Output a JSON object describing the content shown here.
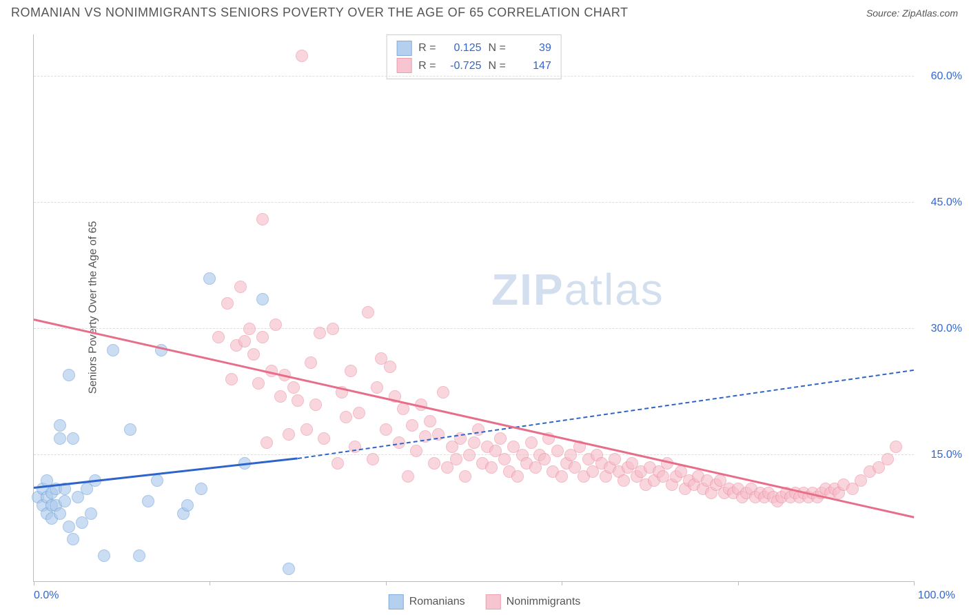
{
  "title": "ROMANIAN VS NONIMMIGRANTS SENIORS POVERTY OVER THE AGE OF 65 CORRELATION CHART",
  "source": "Source: ZipAtlas.com",
  "ylabel": "Seniors Poverty Over the Age of 65",
  "watermark_a": "ZIP",
  "watermark_b": "atlas",
  "chart": {
    "type": "scatter",
    "xlim": [
      0,
      100
    ],
    "ylim": [
      0,
      65
    ],
    "ytick_values": [
      15,
      30,
      45,
      60
    ],
    "ytick_labels": [
      "15.0%",
      "30.0%",
      "45.0%",
      "60.0%"
    ],
    "xtick_values": [
      0,
      20,
      40,
      60,
      80,
      100
    ],
    "xtick_end_labels": {
      "left": "0.0%",
      "right": "100.0%"
    },
    "background_color": "#ffffff",
    "grid_color": "#dddddd",
    "axis_color": "#bbbbbb",
    "label_color": "#555555",
    "tick_label_color": "#3366cc",
    "marker_radius": 9,
    "marker_stroke_width": 1.5,
    "trend_line_width": 3,
    "series": [
      {
        "name": "Romanians",
        "fill_color": "#a9c8ec",
        "stroke_color": "#6b9fd8",
        "fill_opacity": 0.6,
        "R": "0.125",
        "N": "39",
        "trend": {
          "x1": 0,
          "y1": 11,
          "x2": 30,
          "y2": 14.5,
          "color": "#2e64c9",
          "extend_to_x": 100,
          "extend_y": 25,
          "extend_dashed": true
        },
        "points": [
          [
            0.5,
            10
          ],
          [
            1,
            11
          ],
          [
            1,
            9
          ],
          [
            1.5,
            12
          ],
          [
            1.5,
            10
          ],
          [
            1.5,
            8
          ],
          [
            2,
            10.5
          ],
          [
            2,
            9
          ],
          [
            2,
            7.5
          ],
          [
            2.5,
            11
          ],
          [
            2.5,
            9
          ],
          [
            3,
            17
          ],
          [
            3,
            18.5
          ],
          [
            3,
            8
          ],
          [
            3.5,
            9.5
          ],
          [
            3.5,
            11
          ],
          [
            4,
            24.5
          ],
          [
            4,
            6.5
          ],
          [
            4.5,
            17
          ],
          [
            4.5,
            5
          ],
          [
            5,
            10
          ],
          [
            5.5,
            7
          ],
          [
            6,
            11
          ],
          [
            6.5,
            8
          ],
          [
            7,
            12
          ],
          [
            8,
            3
          ],
          [
            9,
            27.5
          ],
          [
            11,
            18
          ],
          [
            12,
            3
          ],
          [
            13,
            9.5
          ],
          [
            14,
            12
          ],
          [
            14.5,
            27.5
          ],
          [
            17,
            8
          ],
          [
            17.5,
            9
          ],
          [
            19,
            11
          ],
          [
            20,
            36
          ],
          [
            24,
            14
          ],
          [
            26,
            33.5
          ],
          [
            29,
            1.5
          ]
        ]
      },
      {
        "name": "Nonimmigrants",
        "fill_color": "#f6bcc8",
        "stroke_color": "#ea8fa2",
        "fill_opacity": 0.6,
        "R": "-0.725",
        "N": "147",
        "trend": {
          "x1": 0,
          "y1": 31,
          "x2": 100,
          "y2": 7.5,
          "color": "#e86d89",
          "extend_dashed": false
        },
        "points": [
          [
            21,
            29
          ],
          [
            22,
            33
          ],
          [
            22.5,
            24
          ],
          [
            23,
            28
          ],
          [
            23.5,
            35
          ],
          [
            24,
            28.5
          ],
          [
            24.5,
            30
          ],
          [
            25,
            27
          ],
          [
            25.5,
            23.5
          ],
          [
            26,
            43
          ],
          [
            26,
            29
          ],
          [
            26.5,
            16.5
          ],
          [
            27,
            25
          ],
          [
            27.5,
            30.5
          ],
          [
            28,
            22
          ],
          [
            28.5,
            24.5
          ],
          [
            29,
            17.5
          ],
          [
            29.5,
            23
          ],
          [
            30,
            21.5
          ],
          [
            30.5,
            62.5
          ],
          [
            31,
            18
          ],
          [
            31.5,
            26
          ],
          [
            32,
            21
          ],
          [
            32.5,
            29.5
          ],
          [
            33,
            17
          ],
          [
            34,
            30
          ],
          [
            34.5,
            14
          ],
          [
            35,
            22.5
          ],
          [
            35.5,
            19.5
          ],
          [
            36,
            25
          ],
          [
            36.5,
            16
          ],
          [
            37,
            20
          ],
          [
            38,
            32
          ],
          [
            38.5,
            14.5
          ],
          [
            39,
            23
          ],
          [
            39.5,
            26.5
          ],
          [
            40,
            18
          ],
          [
            40.5,
            25.5
          ],
          [
            41,
            22
          ],
          [
            41.5,
            16.5
          ],
          [
            42,
            20.5
          ],
          [
            42.5,
            12.5
          ],
          [
            43,
            18.5
          ],
          [
            43.5,
            15.5
          ],
          [
            44,
            21
          ],
          [
            44.5,
            17.2
          ],
          [
            45,
            19
          ],
          [
            45.5,
            14
          ],
          [
            46,
            17.5
          ],
          [
            46.5,
            22.5
          ],
          [
            47,
            13.5
          ],
          [
            47.5,
            16
          ],
          [
            48,
            14.5
          ],
          [
            48.5,
            17
          ],
          [
            49,
            12.5
          ],
          [
            49.5,
            15
          ],
          [
            50,
            16.5
          ],
          [
            50.5,
            18
          ],
          [
            51,
            14
          ],
          [
            51.5,
            16
          ],
          [
            52,
            13.5
          ],
          [
            52.5,
            15.5
          ],
          [
            53,
            17
          ],
          [
            53.5,
            14.5
          ],
          [
            54,
            13
          ],
          [
            54.5,
            16
          ],
          [
            55,
            12.5
          ],
          [
            55.5,
            15
          ],
          [
            56,
            14
          ],
          [
            56.5,
            16.5
          ],
          [
            57,
            13.5
          ],
          [
            57.5,
            15
          ],
          [
            58,
            14.5
          ],
          [
            58.5,
            17
          ],
          [
            59,
            13
          ],
          [
            59.5,
            15.5
          ],
          [
            60,
            12.5
          ],
          [
            60.5,
            14
          ],
          [
            61,
            15
          ],
          [
            61.5,
            13.5
          ],
          [
            62,
            16
          ],
          [
            62.5,
            12.5
          ],
          [
            63,
            14.5
          ],
          [
            63.5,
            13
          ],
          [
            64,
            15
          ],
          [
            64.5,
            14
          ],
          [
            65,
            12.5
          ],
          [
            65.5,
            13.5
          ],
          [
            66,
            14.5
          ],
          [
            66.5,
            13
          ],
          [
            67,
            12
          ],
          [
            67.5,
            13.5
          ],
          [
            68,
            14
          ],
          [
            68.5,
            12.5
          ],
          [
            69,
            13
          ],
          [
            69.5,
            11.5
          ],
          [
            70,
            13.5
          ],
          [
            70.5,
            12
          ],
          [
            71,
            13
          ],
          [
            71.5,
            12.5
          ],
          [
            72,
            14
          ],
          [
            72.5,
            11.5
          ],
          [
            73,
            12.5
          ],
          [
            73.5,
            13
          ],
          [
            74,
            11
          ],
          [
            74.5,
            12
          ],
          [
            75,
            11.5
          ],
          [
            75.5,
            12.5
          ],
          [
            76,
            11
          ],
          [
            76.5,
            12
          ],
          [
            77,
            10.5
          ],
          [
            77.5,
            11.5
          ],
          [
            78,
            12
          ],
          [
            78.5,
            10.5
          ],
          [
            79,
            11
          ],
          [
            79.5,
            10.5
          ],
          [
            80,
            11
          ],
          [
            80.5,
            10
          ],
          [
            81,
            10.5
          ],
          [
            81.5,
            11
          ],
          [
            82,
            10
          ],
          [
            82.5,
            10.5
          ],
          [
            83,
            10
          ],
          [
            83.5,
            10.5
          ],
          [
            84,
            10
          ],
          [
            84.5,
            9.5
          ],
          [
            85,
            10
          ],
          [
            85.5,
            10.5
          ],
          [
            86,
            10
          ],
          [
            86.5,
            10.5
          ],
          [
            87,
            10
          ],
          [
            87.5,
            10.5
          ],
          [
            88,
            10
          ],
          [
            88.5,
            10.5
          ],
          [
            89,
            10
          ],
          [
            89.5,
            10.5
          ],
          [
            90,
            11
          ],
          [
            90.5,
            10.5
          ],
          [
            91,
            11
          ],
          [
            91.5,
            10.5
          ],
          [
            92,
            11.5
          ],
          [
            93,
            11
          ],
          [
            94,
            12
          ],
          [
            95,
            13
          ],
          [
            96,
            13.5
          ],
          [
            97,
            14.5
          ],
          [
            98,
            16
          ]
        ]
      }
    ]
  },
  "legend": {
    "items": [
      {
        "label": "Romanians",
        "fill": "#a9c8ec",
        "stroke": "#6b9fd8"
      },
      {
        "label": "Nonimmigrants",
        "fill": "#f6bcc8",
        "stroke": "#ea8fa2"
      }
    ]
  }
}
